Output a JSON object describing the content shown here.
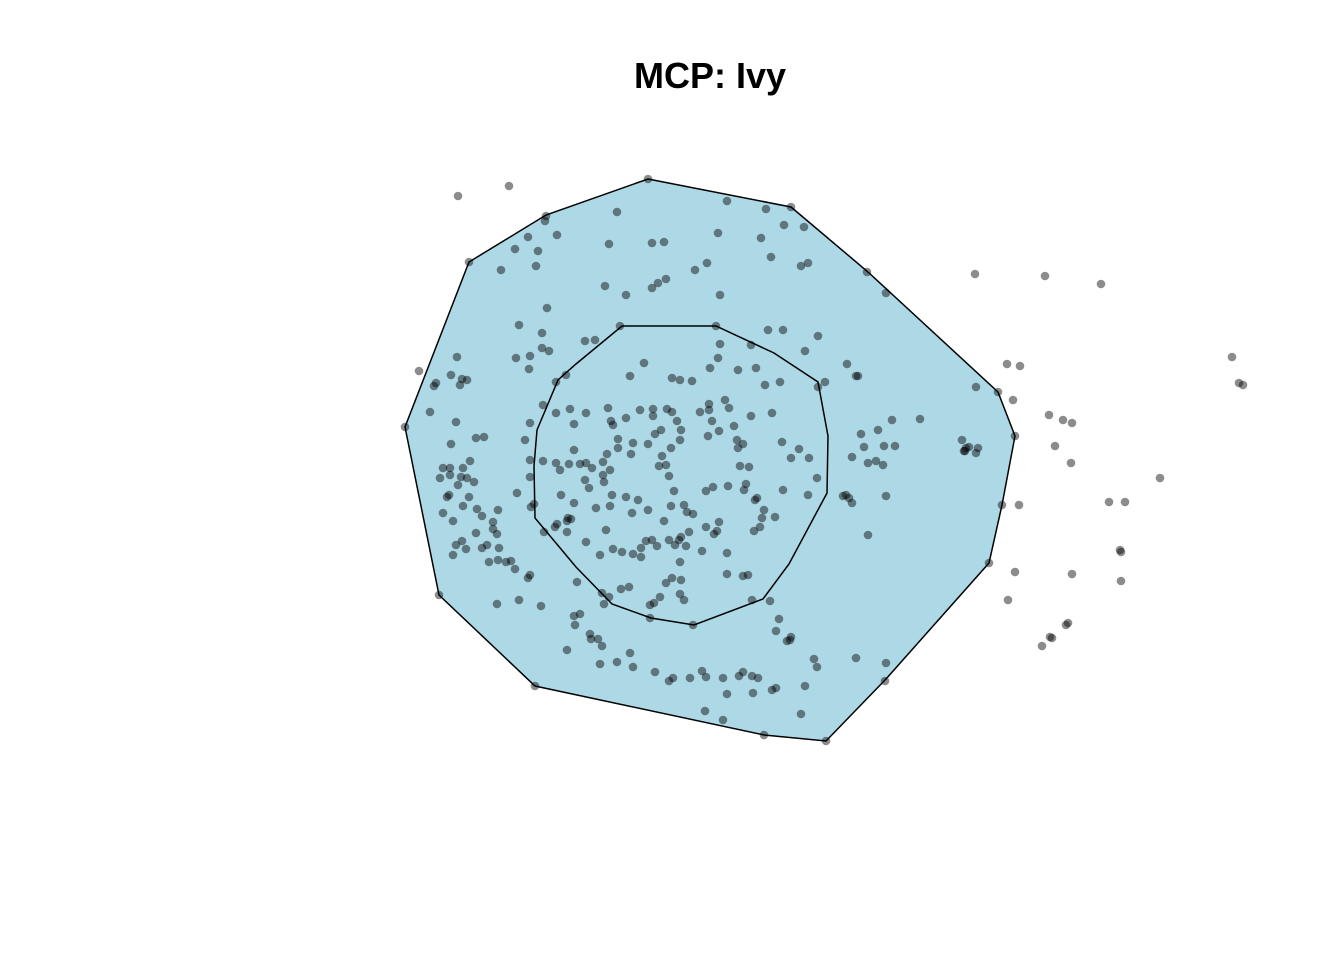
{
  "chart_data": {
    "type": "scatter",
    "title": "MCP: Ivy",
    "xlabel": "",
    "ylabel": "",
    "axes_shown": false,
    "grid": false,
    "colors": {
      "fill": "#add8e6",
      "outline": "#000000",
      "point": "#000000",
      "point_opacity": 0.45
    },
    "mcp_100_vertices": [
      [
        648,
        179
      ],
      [
        791,
        207
      ],
      [
        868,
        272
      ],
      [
        998,
        392
      ],
      [
        1015,
        436
      ],
      [
        1002,
        505
      ],
      [
        989,
        563
      ],
      [
        886,
        679
      ],
      [
        826,
        741
      ],
      [
        764,
        735
      ],
      [
        535,
        686
      ],
      [
        439,
        595
      ],
      [
        405,
        427
      ],
      [
        469,
        262
      ],
      [
        546,
        215
      ]
    ],
    "mcp_50_vertices": [
      [
        622,
        326
      ],
      [
        716,
        326
      ],
      [
        774,
        353
      ],
      [
        818,
        382
      ],
      [
        828,
        436
      ],
      [
        827,
        493
      ],
      [
        789,
        564
      ],
      [
        763,
        599
      ],
      [
        694,
        625
      ],
      [
        651,
        618
      ],
      [
        612,
        604
      ],
      [
        576,
        567
      ],
      [
        535,
        518
      ],
      [
        534,
        466
      ],
      [
        537,
        430
      ],
      [
        558,
        380
      ],
      [
        576,
        364
      ]
    ],
    "points": [
      [
        458,
        196
      ],
      [
        509,
        186
      ],
      [
        648,
        179
      ],
      [
        791,
        207
      ],
      [
        546,
        216
      ],
      [
        528,
        237
      ],
      [
        557,
        235
      ],
      [
        501,
        270
      ],
      [
        536,
        266
      ],
      [
        545,
        221
      ],
      [
        515,
        249
      ],
      [
        538,
        251
      ],
      [
        617,
        212
      ],
      [
        727,
        201
      ],
      [
        766,
        209
      ],
      [
        718,
        233
      ],
      [
        761,
        238
      ],
      [
        804,
        227
      ],
      [
        784,
        225
      ],
      [
        609,
        244
      ],
      [
        652,
        243
      ],
      [
        664,
        242
      ],
      [
        605,
        286
      ],
      [
        626,
        295
      ],
      [
        652,
        288
      ],
      [
        666,
        279
      ],
      [
        695,
        270
      ],
      [
        707,
        263
      ],
      [
        771,
        257
      ],
      [
        801,
        266
      ],
      [
        808,
        263
      ],
      [
        720,
        295
      ],
      [
        867,
        272
      ],
      [
        886,
        293
      ],
      [
        658,
        283
      ],
      [
        469,
        262
      ],
      [
        547,
        308
      ],
      [
        519,
        325
      ],
      [
        542,
        333
      ],
      [
        542,
        348
      ],
      [
        549,
        351
      ],
      [
        585,
        341
      ],
      [
        595,
        340
      ],
      [
        620,
        326
      ],
      [
        716,
        326
      ],
      [
        768,
        330
      ],
      [
        783,
        330
      ],
      [
        805,
        351
      ],
      [
        818,
        336
      ],
      [
        856,
        376
      ],
      [
        847,
        364
      ],
      [
        858,
        376
      ],
      [
        825,
        382
      ],
      [
        818,
        387
      ],
      [
        765,
        385
      ],
      [
        780,
        382
      ],
      [
        751,
        345
      ],
      [
        720,
        344
      ],
      [
        718,
        358
      ],
      [
        710,
        368
      ],
      [
        738,
        370
      ],
      [
        756,
        368
      ],
      [
        692,
        381
      ],
      [
        680,
        380
      ],
      [
        672,
        378
      ],
      [
        630,
        376
      ],
      [
        644,
        363
      ],
      [
        566,
        375
      ],
      [
        556,
        382
      ],
      [
        529,
        369
      ],
      [
        530,
        356
      ],
      [
        516,
        358
      ],
      [
        457,
        357
      ],
      [
        419,
        371
      ],
      [
        436,
        383
      ],
      [
        462,
        379
      ],
      [
        467,
        380
      ],
      [
        451,
        375
      ],
      [
        434,
        386
      ],
      [
        460,
        385
      ],
      [
        430,
        412
      ],
      [
        456,
        422
      ],
      [
        405,
        427
      ],
      [
        451,
        444
      ],
      [
        476,
        438
      ],
      [
        484,
        437
      ],
      [
        470,
        461
      ],
      [
        463,
        468
      ],
      [
        450,
        468
      ],
      [
        443,
        468
      ],
      [
        450,
        475
      ],
      [
        440,
        478
      ],
      [
        461,
        477
      ],
      [
        458,
        485
      ],
      [
        467,
        478
      ],
      [
        474,
        482
      ],
      [
        449,
        495
      ],
      [
        447,
        497
      ],
      [
        469,
        497
      ],
      [
        463,
        506
      ],
      [
        443,
        513
      ],
      [
        453,
        521
      ],
      [
        477,
        509
      ],
      [
        482,
        516
      ],
      [
        498,
        510
      ],
      [
        493,
        522
      ],
      [
        476,
        533
      ],
      [
        493,
        529
      ],
      [
        497,
        534
      ],
      [
        487,
        545
      ],
      [
        499,
        548
      ],
      [
        456,
        545
      ],
      [
        453,
        555
      ],
      [
        462,
        541
      ],
      [
        466,
        549
      ],
      [
        482,
        548
      ],
      [
        489,
        562
      ],
      [
        498,
        560
      ],
      [
        506,
        562
      ],
      [
        511,
        561
      ],
      [
        530,
        575
      ],
      [
        528,
        578
      ],
      [
        515,
        569
      ],
      [
        497,
        604
      ],
      [
        519,
        600
      ],
      [
        541,
        606
      ],
      [
        439,
        595
      ],
      [
        530,
        460
      ],
      [
        543,
        461
      ],
      [
        530,
        477
      ],
      [
        517,
        493
      ],
      [
        525,
        440
      ],
      [
        530,
        423
      ],
      [
        543,
        405
      ],
      [
        570,
        409
      ],
      [
        586,
        413
      ],
      [
        574,
        424
      ],
      [
        556,
        413
      ],
      [
        574,
        450
      ],
      [
        569,
        464
      ],
      [
        560,
        470
      ],
      [
        556,
        463
      ],
      [
        586,
        463
      ],
      [
        580,
        464
      ],
      [
        592,
        468
      ],
      [
        603,
        475
      ],
      [
        610,
        470
      ],
      [
        604,
        482
      ],
      [
        561,
        495
      ],
      [
        531,
        507
      ],
      [
        534,
        504
      ],
      [
        557,
        524
      ],
      [
        568,
        518
      ],
      [
        567,
        521
      ],
      [
        567,
        532
      ],
      [
        586,
        542
      ],
      [
        600,
        555
      ],
      [
        613,
        549
      ],
      [
        622,
        552
      ],
      [
        633,
        554
      ],
      [
        641,
        548
      ],
      [
        646,
        541
      ],
      [
        652,
        540
      ],
      [
        657,
        546
      ],
      [
        641,
        557
      ],
      [
        629,
        587
      ],
      [
        621,
        589
      ],
      [
        602,
        593
      ],
      [
        609,
        597
      ],
      [
        654,
        603
      ],
      [
        650,
        605
      ],
      [
        660,
        597
      ],
      [
        684,
        600
      ],
      [
        693,
        625
      ],
      [
        650,
        618
      ],
      [
        604,
        604
      ],
      [
        580,
        614
      ],
      [
        574,
        616
      ],
      [
        575,
        625
      ],
      [
        590,
        634
      ],
      [
        598,
        639
      ],
      [
        591,
        639
      ],
      [
        600,
        664
      ],
      [
        617,
        662
      ],
      [
        602,
        646
      ],
      [
        567,
        650
      ],
      [
        535,
        686
      ],
      [
        630,
        653
      ],
      [
        633,
        667
      ],
      [
        655,
        672
      ],
      [
        673,
        678
      ],
      [
        669,
        681
      ],
      [
        690,
        678
      ],
      [
        702,
        671
      ],
      [
        706,
        677
      ],
      [
        723,
        678
      ],
      [
        739,
        676
      ],
      [
        743,
        672
      ],
      [
        752,
        676
      ],
      [
        758,
        678
      ],
      [
        776,
        688
      ],
      [
        772,
        690
      ],
      [
        753,
        693
      ],
      [
        727,
        694
      ],
      [
        705,
        711
      ],
      [
        723,
        720
      ],
      [
        764,
        735
      ],
      [
        826,
        741
      ],
      [
        801,
        714
      ],
      [
        805,
        686
      ],
      [
        817,
        667
      ],
      [
        814,
        659
      ],
      [
        787,
        641
      ],
      [
        776,
        631
      ],
      [
        779,
        619
      ],
      [
        791,
        637
      ],
      [
        790,
        640
      ],
      [
        770,
        601
      ],
      [
        752,
        600
      ],
      [
        743,
        576
      ],
      [
        748,
        575
      ],
      [
        754,
        531
      ],
      [
        760,
        527
      ],
      [
        762,
        518
      ],
      [
        775,
        517
      ],
      [
        764,
        510
      ],
      [
        755,
        500
      ],
      [
        744,
        490
      ],
      [
        746,
        484
      ],
      [
        740,
        466
      ],
      [
        749,
        467
      ],
      [
        738,
        448
      ],
      [
        743,
        444
      ],
      [
        737,
        440
      ],
      [
        719,
        431
      ],
      [
        708,
        436
      ],
      [
        712,
        421
      ],
      [
        709,
        410
      ],
      [
        700,
        412
      ],
      [
        709,
        404
      ],
      [
        725,
        400
      ],
      [
        729,
        408
      ],
      [
        734,
        426
      ],
      [
        751,
        416
      ],
      [
        772,
        413
      ],
      [
        782,
        442
      ],
      [
        791,
        458
      ],
      [
        799,
        449
      ],
      [
        809,
        458
      ],
      [
        817,
        478
      ],
      [
        808,
        495
      ],
      [
        783,
        490
      ],
      [
        757,
        498
      ],
      [
        728,
        486
      ],
      [
        713,
        487
      ],
      [
        706,
        491
      ],
      [
        684,
        505
      ],
      [
        687,
        512
      ],
      [
        693,
        514
      ],
      [
        706,
        527
      ],
      [
        714,
        534
      ],
      [
        717,
        531
      ],
      [
        702,
        551
      ],
      [
        680,
        562
      ],
      [
        681,
        580
      ],
      [
        672,
        578
      ],
      [
        666,
        583
      ],
      [
        680,
        594
      ],
      [
        719,
        522
      ],
      [
        727,
        553
      ],
      [
        727,
        574
      ],
      [
        689,
        532
      ],
      [
        679,
        540
      ],
      [
        681,
        537
      ],
      [
        675,
        545
      ],
      [
        686,
        546
      ],
      [
        669,
        540
      ],
      [
        664,
        521
      ],
      [
        671,
        506
      ],
      [
        674,
        491
      ],
      [
        669,
        476
      ],
      [
        666,
        465
      ],
      [
        659,
        466
      ],
      [
        662,
        456
      ],
      [
        671,
        448
      ],
      [
        680,
        440
      ],
      [
        681,
        430
      ],
      [
        677,
        421
      ],
      [
        672,
        412
      ],
      [
        667,
        409
      ],
      [
        653,
        409
      ],
      [
        653,
        416
      ],
      [
        640,
        410
      ],
      [
        626,
        418
      ],
      [
        608,
        408
      ],
      [
        611,
        421
      ],
      [
        613,
        425
      ],
      [
        618,
        439
      ],
      [
        633,
        443
      ],
      [
        655,
        434
      ],
      [
        661,
        430
      ],
      [
        648,
        444
      ],
      [
        631,
        454
      ],
      [
        618,
        448
      ],
      [
        607,
        454
      ],
      [
        603,
        462
      ],
      [
        585,
        480
      ],
      [
        589,
        488
      ],
      [
        612,
        495
      ],
      [
        626,
        497
      ],
      [
        638,
        500
      ],
      [
        648,
        510
      ],
      [
        632,
        513
      ],
      [
        610,
        506
      ],
      [
        596,
        508
      ],
      [
        574,
        503
      ],
      [
        571,
        519
      ],
      [
        555,
        527
      ],
      [
        544,
        532
      ],
      [
        577,
        582
      ],
      [
        606,
        530
      ],
      [
        849,
        498
      ],
      [
        852,
        503
      ],
      [
        846,
        495
      ],
      [
        843,
        496
      ],
      [
        852,
        457
      ],
      [
        864,
        447
      ],
      [
        861,
        434
      ],
      [
        878,
        430
      ],
      [
        884,
        446
      ],
      [
        876,
        461
      ],
      [
        883,
        465
      ],
      [
        868,
        463
      ],
      [
        886,
        496
      ],
      [
        895,
        446
      ],
      [
        892,
        420
      ],
      [
        920,
        419
      ],
      [
        962,
        440
      ],
      [
        969,
        447
      ],
      [
        965,
        451
      ],
      [
        978,
        448
      ],
      [
        976,
        453
      ],
      [
        964,
        451
      ],
      [
        966,
        448
      ],
      [
        886,
        663
      ],
      [
        856,
        658
      ],
      [
        885,
        681
      ],
      [
        868,
        535
      ],
      [
        989,
        563
      ],
      [
        1002,
        505
      ],
      [
        1015,
        436
      ],
      [
        998,
        392
      ],
      [
        1013,
        400
      ],
      [
        1007,
        364
      ],
      [
        1020,
        366
      ],
      [
        1049,
        415
      ],
      [
        1063,
        420
      ],
      [
        1072,
        423
      ],
      [
        1055,
        446
      ],
      [
        1071,
        463
      ],
      [
        1019,
        505
      ],
      [
        1109,
        502
      ],
      [
        1125,
        502
      ],
      [
        1160,
        478
      ],
      [
        1120,
        550
      ],
      [
        1121,
        552
      ],
      [
        1121,
        581
      ],
      [
        1072,
        574
      ],
      [
        1015,
        572
      ],
      [
        1008,
        600
      ],
      [
        1068,
        623
      ],
      [
        1066,
        625
      ],
      [
        1050,
        637
      ],
      [
        1042,
        646
      ],
      [
        1052,
        638
      ],
      [
        975,
        274
      ],
      [
        1045,
        276
      ],
      [
        1101,
        284
      ],
      [
        1232,
        357
      ],
      [
        1239,
        383
      ],
      [
        1243,
        385
      ],
      [
        976,
        387
      ]
    ]
  }
}
